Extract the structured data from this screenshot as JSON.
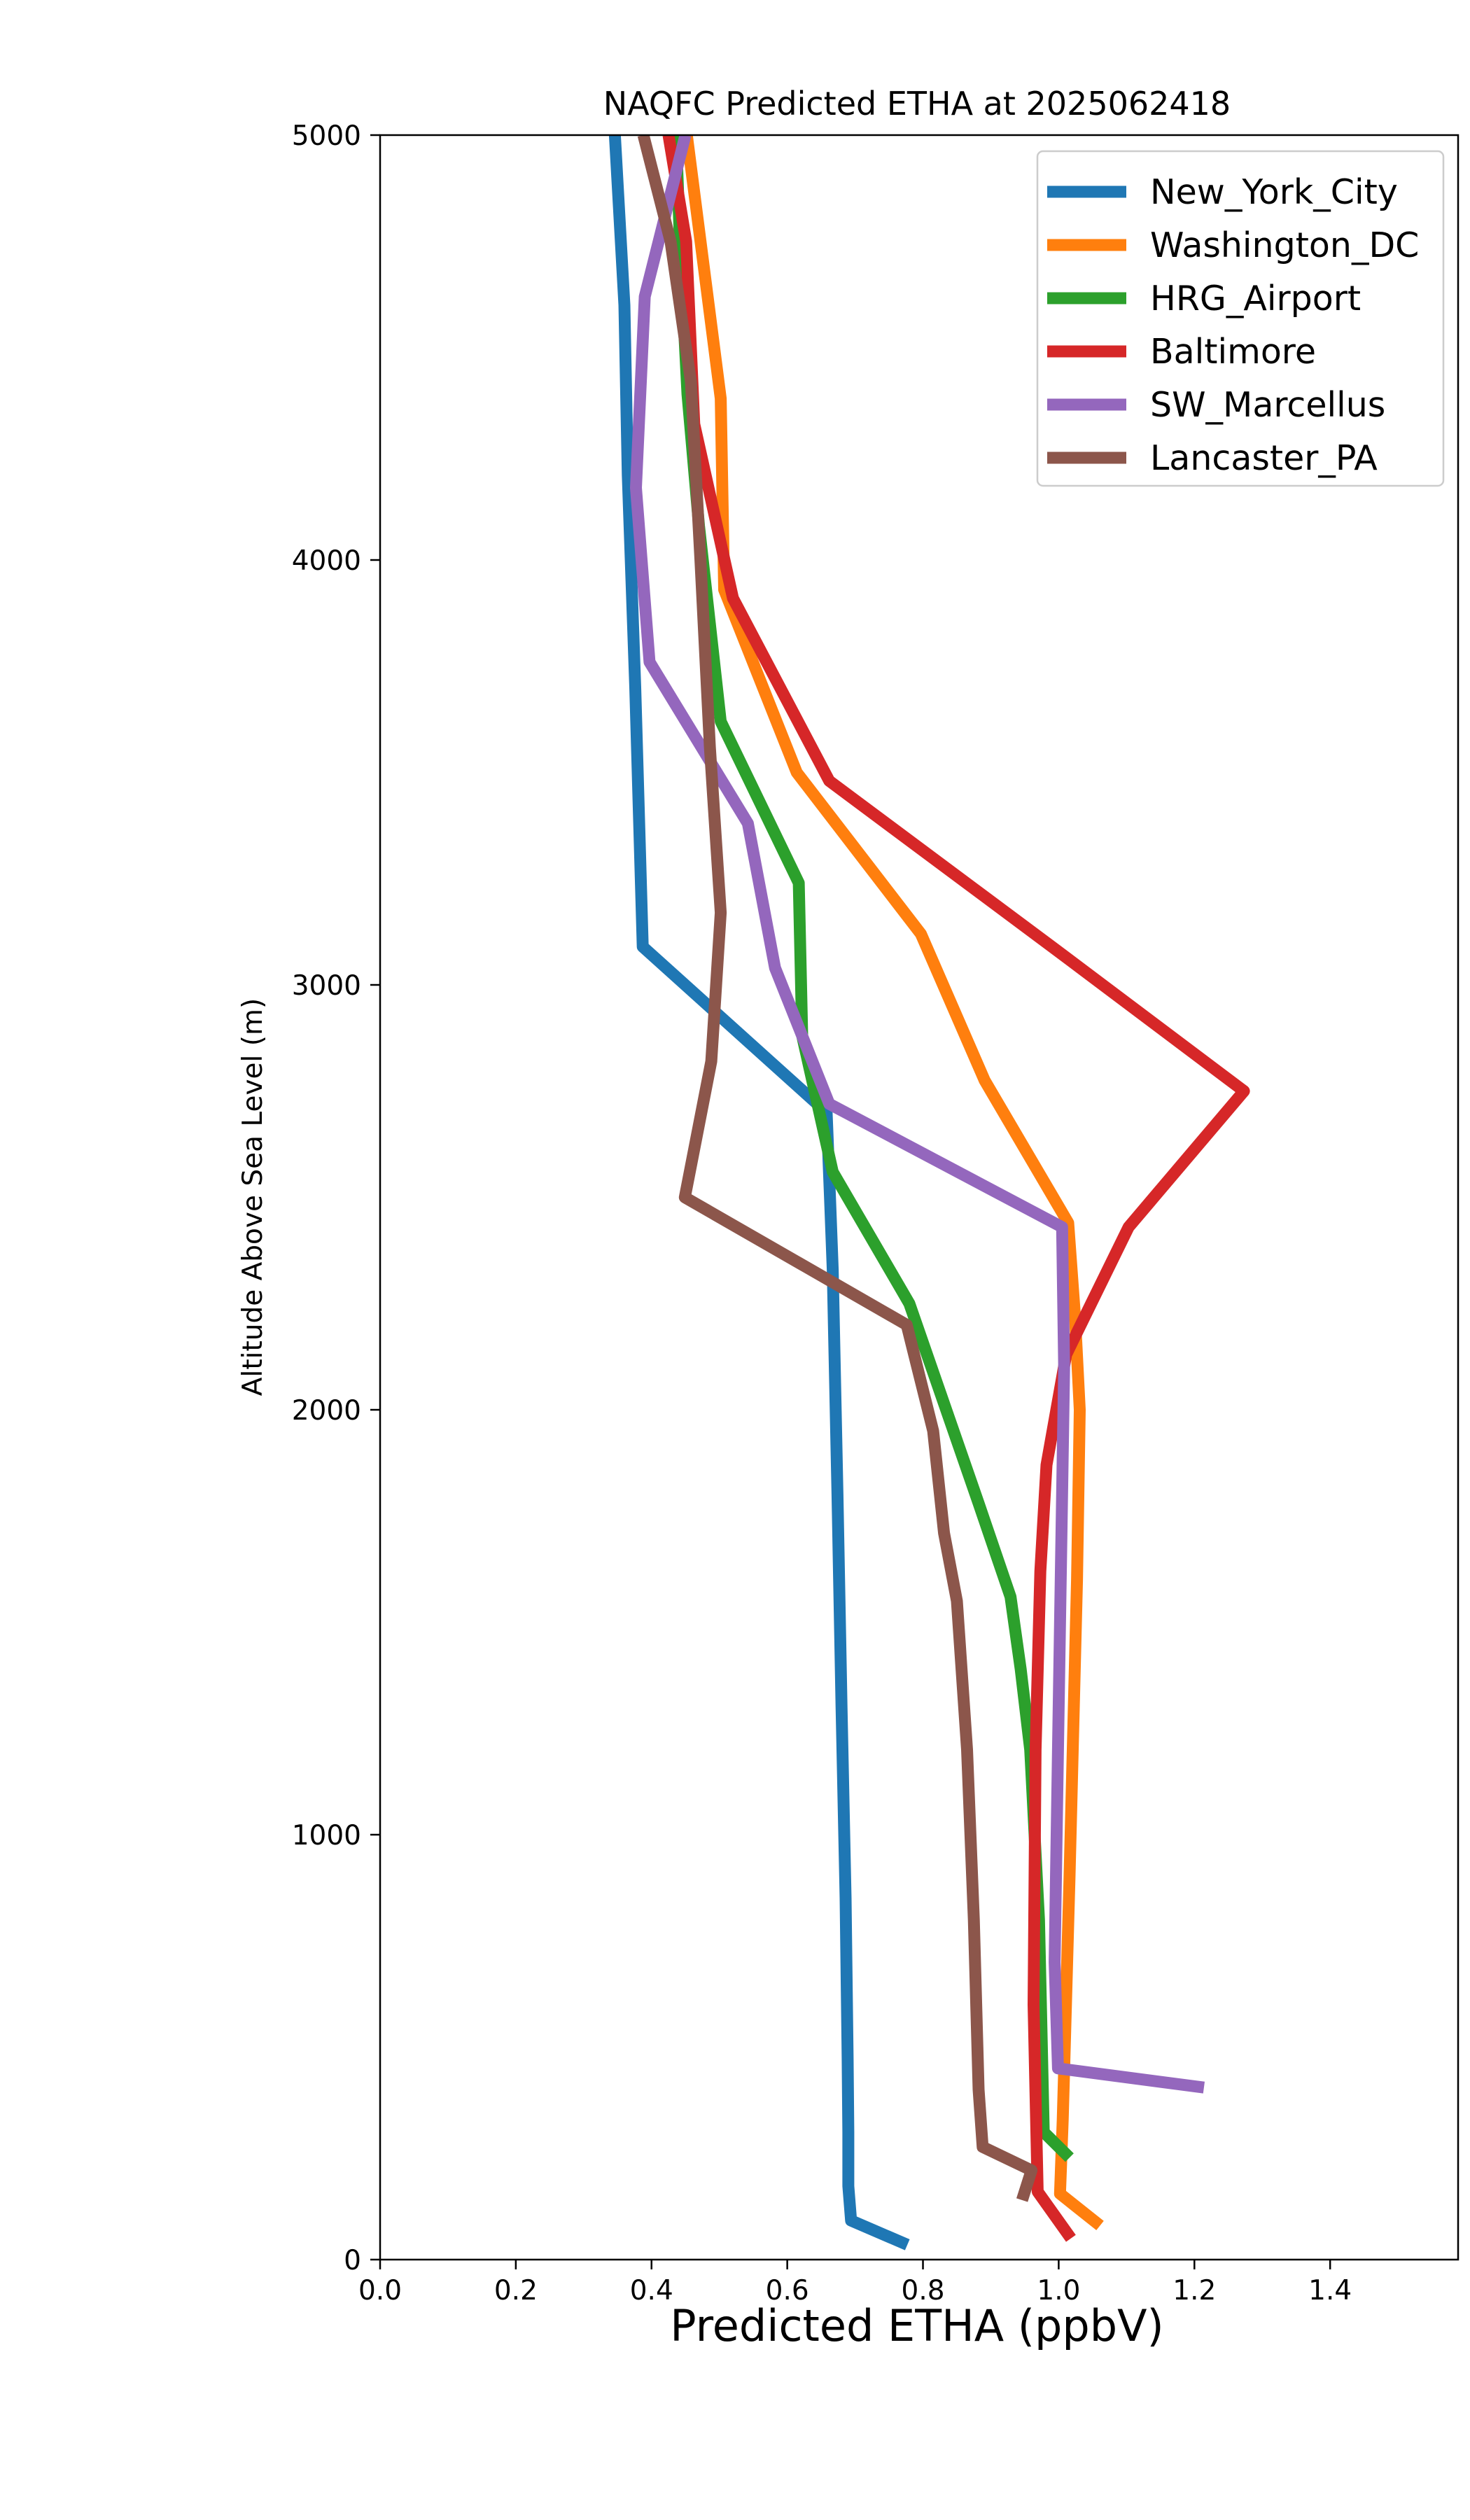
{
  "chart_data": {
    "type": "line",
    "title": "NAQFC Predicted ETHA at 2025062418",
    "xlabel": "Predicted ETHA (ppbV)",
    "ylabel": "Altitude Above Sea Level (m)",
    "xlim": [
      0.0,
      1.5886
    ],
    "ylim": [
      0,
      5000
    ],
    "xticks": [
      0.0,
      0.2,
      0.4,
      0.6,
      0.8,
      1.0,
      1.2,
      1.4
    ],
    "xtick_labels": [
      "0.0",
      "0.2",
      "0.4",
      "0.6",
      "0.8",
      "1.0",
      "1.2",
      "1.4"
    ],
    "yticks": [
      0,
      1000,
      2000,
      3000,
      4000,
      5000
    ],
    "ytick_labels": [
      "0",
      "1000",
      "2000",
      "3000",
      "4000",
      "5000"
    ],
    "grid": false,
    "legend_position": "top-right",
    "series": [
      {
        "name": "New_York_City",
        "color": "#1f77b4",
        "points": [
          [
            0.777,
            35
          ],
          [
            0.694,
            92
          ],
          [
            0.69,
            173
          ],
          [
            0.69,
            300
          ],
          [
            0.689,
            475
          ],
          [
            0.686,
            850
          ],
          [
            0.68,
            1300
          ],
          [
            0.674,
            1800
          ],
          [
            0.667,
            2330
          ],
          [
            0.663,
            2500
          ],
          [
            0.658,
            2700
          ],
          [
            0.387,
            3090
          ],
          [
            0.376,
            3700
          ],
          [
            0.365,
            4200
          ],
          [
            0.36,
            4600
          ],
          [
            0.346,
            5000
          ]
        ]
      },
      {
        "name": "Washington_DC",
        "color": "#ff7f0e",
        "points": [
          [
            1.061,
            80
          ],
          [
            1.002,
            155
          ],
          [
            1.006,
            330
          ],
          [
            1.016,
            900
          ],
          [
            1.027,
            1600
          ],
          [
            1.031,
            2000
          ],
          [
            1.024,
            2220
          ],
          [
            1.014,
            2440
          ],
          [
            0.891,
            2775
          ],
          [
            0.797,
            3120
          ],
          [
            0.614,
            3500
          ],
          [
            0.507,
            3930
          ],
          [
            0.502,
            4380
          ],
          [
            0.452,
            5000
          ]
        ]
      },
      {
        "name": "HRG_Airport",
        "color": "#2ca02c",
        "points": [
          [
            1.016,
            240
          ],
          [
            0.978,
            300
          ],
          [
            0.971,
            800
          ],
          [
            0.958,
            1200
          ],
          [
            0.944,
            1390
          ],
          [
            0.929,
            1560
          ],
          [
            0.882,
            1780
          ],
          [
            0.78,
            2250
          ],
          [
            0.667,
            2560
          ],
          [
            0.622,
            2880
          ],
          [
            0.617,
            3240
          ],
          [
            0.502,
            3620
          ],
          [
            0.47,
            4080
          ],
          [
            0.453,
            4390
          ],
          [
            0.443,
            4700
          ],
          [
            0.436,
            5000
          ]
        ]
      },
      {
        "name": "Baltimore",
        "color": "#d62728",
        "points": [
          [
            1.018,
            50
          ],
          [
            0.969,
            160
          ],
          [
            0.963,
            600
          ],
          [
            0.966,
            1200
          ],
          [
            0.973,
            1620
          ],
          [
            0.982,
            1870
          ],
          [
            1.011,
            2130
          ],
          [
            1.103,
            2430
          ],
          [
            1.273,
            2750
          ],
          [
            0.99,
            3090
          ],
          [
            0.662,
            3480
          ],
          [
            0.52,
            3910
          ],
          [
            0.463,
            4320
          ],
          [
            0.451,
            4750
          ],
          [
            0.425,
            5000
          ]
        ]
      },
      {
        "name": "SW_Marcellus",
        "color": "#9467bd",
        "points": [
          [
            1.214,
            405
          ],
          [
            0.999,
            450
          ],
          [
            0.994,
            700
          ],
          [
            0.999,
            1200
          ],
          [
            1.004,
            1700
          ],
          [
            1.008,
            2100
          ],
          [
            1.005,
            2430
          ],
          [
            0.662,
            2720
          ],
          [
            0.582,
            3040
          ],
          [
            0.542,
            3380
          ],
          [
            0.397,
            3760
          ],
          [
            0.377,
            4170
          ],
          [
            0.39,
            4620
          ],
          [
            0.45,
            5000
          ]
        ]
      },
      {
        "name": "Lancaster_PA",
        "color": "#8c564b",
        "points": [
          [
            0.946,
            140
          ],
          [
            0.96,
            210
          ],
          [
            0.888,
            265
          ],
          [
            0.882,
            400
          ],
          [
            0.875,
            800
          ],
          [
            0.865,
            1200
          ],
          [
            0.85,
            1550
          ],
          [
            0.831,
            1710
          ],
          [
            0.815,
            1950
          ],
          [
            0.776,
            2200
          ],
          [
            0.449,
            2500
          ],
          [
            0.488,
            2820
          ],
          [
            0.502,
            3170
          ],
          [
            0.486,
            3560
          ],
          [
            0.472,
            4000
          ],
          [
            0.458,
            4420
          ],
          [
            0.428,
            4750
          ],
          [
            0.388,
            5000
          ]
        ]
      }
    ]
  }
}
